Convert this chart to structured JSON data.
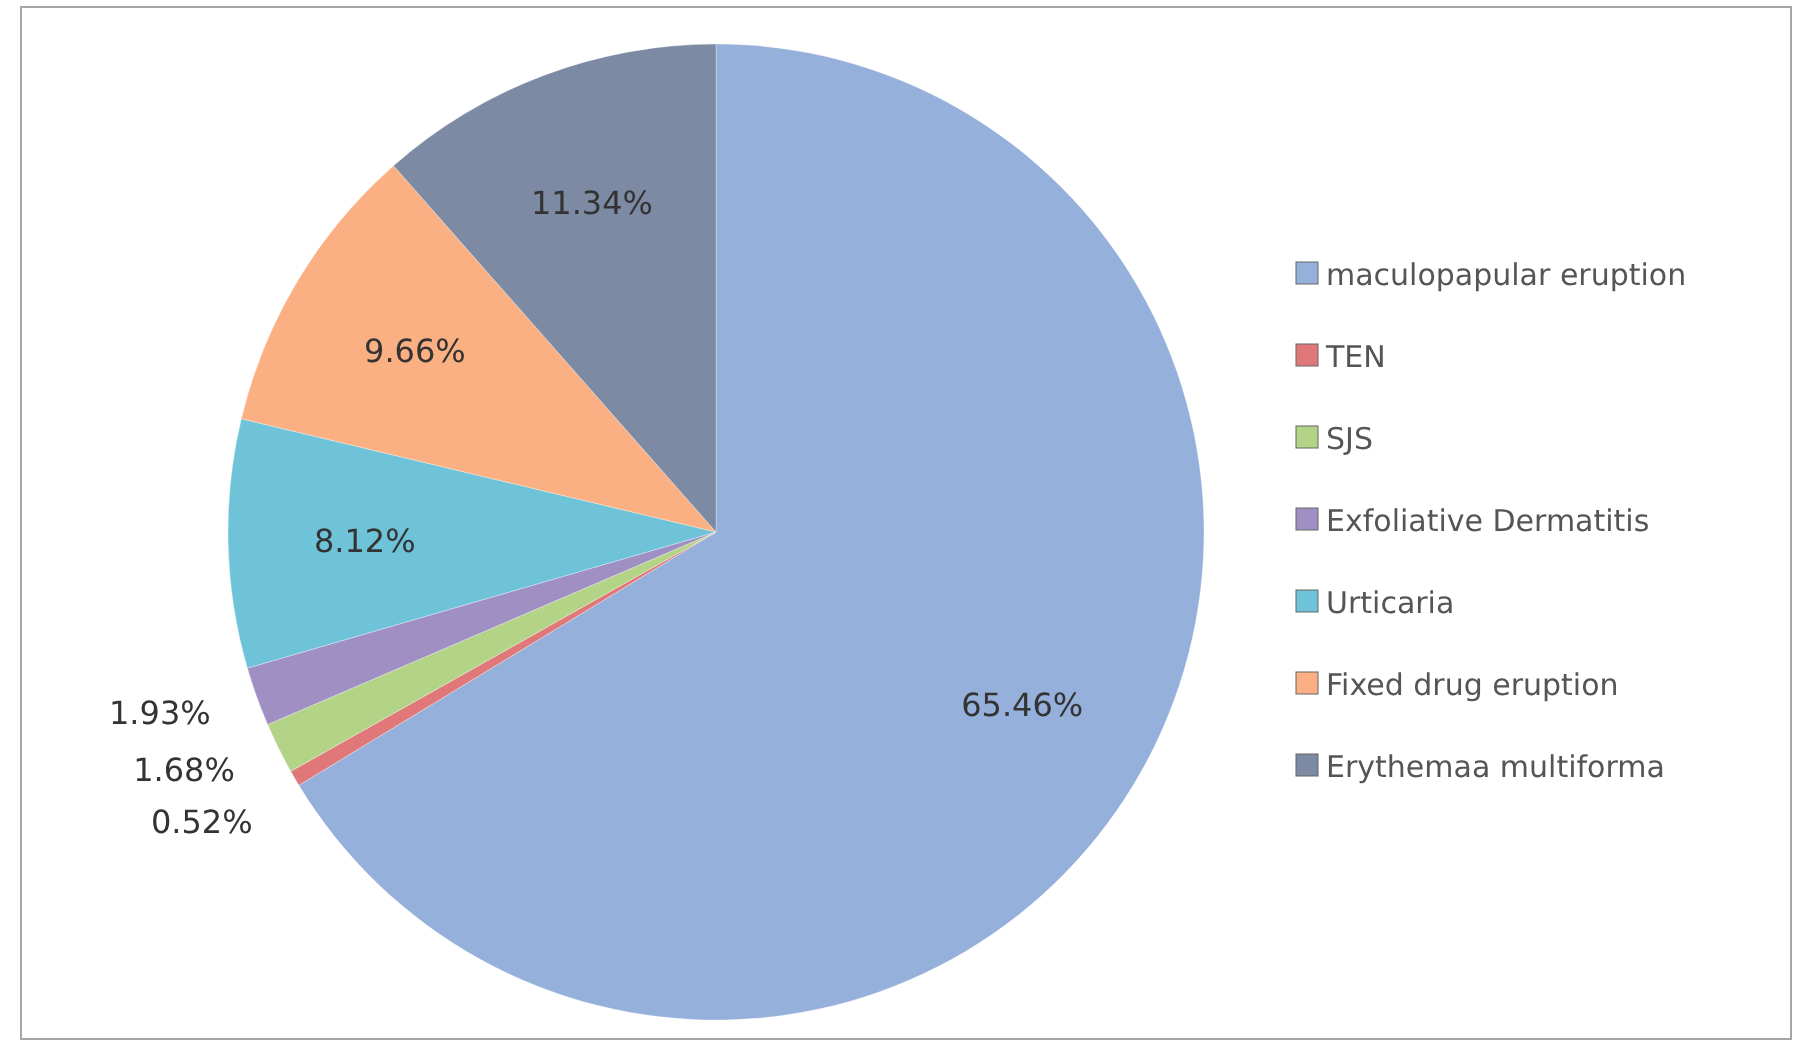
{
  "chart_data": {
    "type": "pie",
    "categories": [
      "maculopapular eruption",
      "TEN",
      "SJS",
      "Exfoliative Dermatitis",
      "Urticaria",
      "Fixed drug eruption",
      "Erythemaa multiforma"
    ],
    "values": [
      65.46,
      0.52,
      1.68,
      1.93,
      8.12,
      9.66,
      11.34
    ],
    "colors": [
      "#95b0da",
      "#e0787a",
      "#b3d487",
      "#a08fc3",
      "#6ec3d8",
      "#fbb083",
      "#7d8aa3"
    ],
    "value_labels": [
      "65.46%",
      "0.52%",
      "1.68%",
      "1.93%",
      "8.12%",
      "9.66%",
      "11.34%"
    ],
    "legend": "right"
  }
}
